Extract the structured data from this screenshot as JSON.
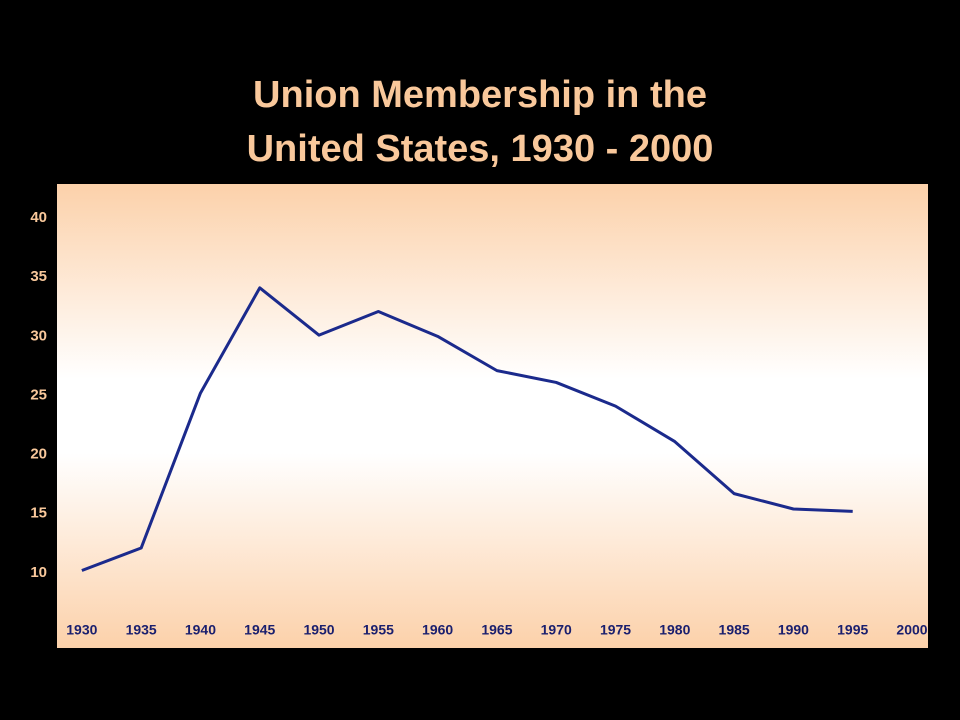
{
  "chart_data": {
    "type": "line",
    "title": [
      "Union Membership in the",
      "United States, 1930 - 2000"
    ],
    "x": [
      1930,
      1935,
      1940,
      1945,
      1950,
      1955,
      1960,
      1965,
      1970,
      1975,
      1980,
      1985,
      1990,
      1995
    ],
    "series": [
      {
        "name": "Union Membership",
        "color": "#1b2a8c",
        "values": [
          10.2,
          12.1,
          25.2,
          34.1,
          30.1,
          32.1,
          30.0,
          27.1,
          26.1,
          24.1,
          21.1,
          16.7,
          15.4,
          15.2
        ]
      }
    ],
    "xlim": [
      1929,
      2000
    ],
    "xticks": [
      1930,
      1935,
      1940,
      1945,
      1950,
      1955,
      1960,
      1965,
      1970,
      1975,
      1980,
      1985,
      1990,
      1995,
      2000
    ],
    "ylim": [
      5,
      42
    ],
    "yticks": [
      10,
      15,
      20,
      25,
      30,
      35,
      40
    ],
    "grid": false
  }
}
